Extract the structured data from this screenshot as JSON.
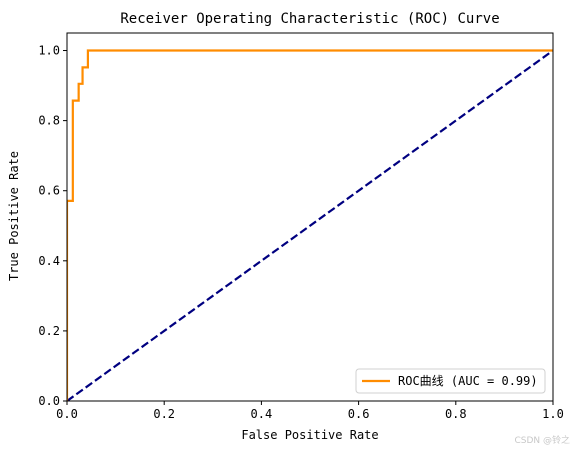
{
  "chart_data": {
    "type": "line",
    "title": "Receiver Operating Characteristic (ROC) Curve",
    "xlabel": "False Positive Rate",
    "ylabel": "True Positive Rate",
    "xlim": [
      0.0,
      1.0
    ],
    "ylim": [
      0.0,
      1.05
    ],
    "xticks": [
      "0.0",
      "0.2",
      "0.4",
      "0.6",
      "0.8",
      "1.0"
    ],
    "yticks": [
      "0.0",
      "0.2",
      "0.4",
      "0.6",
      "0.8",
      "1.0"
    ],
    "grid": false,
    "legend_position": "lower-right",
    "series": [
      {
        "name": "ROC曲线 (AUC = 0.99)",
        "color": "#ff8c00",
        "style": "solid",
        "x": [
          0.0,
          0.0,
          0.0,
          0.0,
          0.012,
          0.012,
          0.024,
          0.024,
          0.032,
          0.032,
          0.043,
          0.043,
          1.0
        ],
        "y": [
          0.0,
          0.0,
          0.0,
          0.571,
          0.571,
          0.857,
          0.857,
          0.905,
          0.905,
          0.952,
          0.952,
          1.0,
          1.0
        ]
      },
      {
        "color": "#000080",
        "style": "dashed",
        "x": [
          0.0,
          1.0
        ],
        "y": [
          0.0,
          1.0
        ]
      }
    ]
  },
  "watermark": "CSDN @铃之"
}
